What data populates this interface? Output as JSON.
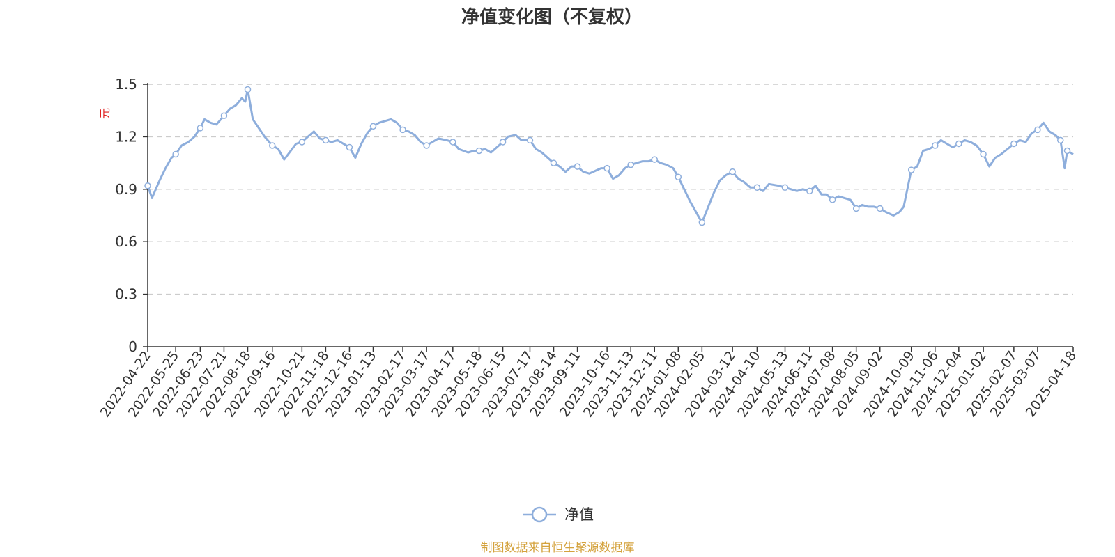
{
  "colors": {
    "series": "#8eaedc",
    "unit": "#e02020",
    "source": "#d4a23c",
    "grid": "#cccccc",
    "axis": "#333333"
  },
  "chart_data": {
    "type": "line",
    "title": "净值变化图（不复权）",
    "ylabel": "元",
    "ylim": [
      0,
      1.5
    ],
    "yticks": [
      "0",
      "0.3",
      "0.6",
      "0.9",
      "1.2",
      "1.5"
    ],
    "grid": true,
    "legend_position": "bottom-center",
    "x_tick_labels": [
      "2022-04-22",
      "2022-05-25",
      "2022-06-23",
      "2022-07-21",
      "2022-08-18",
      "2022-09-16",
      "2022-10-21",
      "2022-11-18",
      "2022-12-16",
      "2023-01-13",
      "2023-02-17",
      "2023-03-17",
      "2023-04-17",
      "2023-05-18",
      "2023-06-15",
      "2023-07-17",
      "2023-08-14",
      "2023-09-11",
      "2023-10-16",
      "2023-11-13",
      "2023-12-11",
      "2024-01-08",
      "2024-02-05",
      "2024-03-12",
      "2024-04-10",
      "2024-05-13",
      "2024-06-11",
      "2024-07-08",
      "2024-08-05",
      "2024-09-02",
      "2024-10-09",
      "2024-11-06",
      "2024-12-04",
      "2025-01-02",
      "2025-02-07",
      "2025-03-07",
      "2025-04-18"
    ],
    "series": [
      {
        "name": "净值",
        "x": [
          "2022-04-22",
          "2022-04-27",
          "2022-05-06",
          "2022-05-13",
          "2022-05-20",
          "2022-05-25",
          "2022-06-01",
          "2022-06-09",
          "2022-06-16",
          "2022-06-23",
          "2022-06-28",
          "2022-07-05",
          "2022-07-12",
          "2022-07-21",
          "2022-07-28",
          "2022-08-04",
          "2022-08-11",
          "2022-08-15",
          "2022-08-18",
          "2022-08-24",
          "2022-08-31",
          "2022-09-07",
          "2022-09-16",
          "2022-09-23",
          "2022-09-30",
          "2022-10-14",
          "2022-10-21",
          "2022-10-28",
          "2022-11-04",
          "2022-11-11",
          "2022-11-18",
          "2022-11-25",
          "2022-12-02",
          "2022-12-09",
          "2022-12-16",
          "2022-12-23",
          "2022-12-30",
          "2023-01-06",
          "2023-01-13",
          "2023-01-20",
          "2023-02-03",
          "2023-02-10",
          "2023-02-17",
          "2023-02-24",
          "2023-03-03",
          "2023-03-10",
          "2023-03-17",
          "2023-03-24",
          "2023-03-31",
          "2023-04-10",
          "2023-04-17",
          "2023-04-24",
          "2023-05-05",
          "2023-05-12",
          "2023-05-18",
          "2023-05-25",
          "2023-06-01",
          "2023-06-08",
          "2023-06-15",
          "2023-06-21",
          "2023-06-30",
          "2023-07-07",
          "2023-07-17",
          "2023-07-24",
          "2023-07-31",
          "2023-08-07",
          "2023-08-14",
          "2023-08-21",
          "2023-08-28",
          "2023-09-04",
          "2023-09-11",
          "2023-09-18",
          "2023-09-25",
          "2023-10-09",
          "2023-10-16",
          "2023-10-23",
          "2023-10-30",
          "2023-11-06",
          "2023-11-13",
          "2023-11-20",
          "2023-11-27",
          "2023-12-04",
          "2023-12-11",
          "2023-12-18",
          "2023-12-25",
          "2024-01-02",
          "2024-01-08",
          "2024-01-15",
          "2024-01-22",
          "2024-01-29",
          "2024-02-05",
          "2024-02-19",
          "2024-02-26",
          "2024-03-04",
          "2024-03-12",
          "2024-03-19",
          "2024-03-26",
          "2024-04-02",
          "2024-04-10",
          "2024-04-17",
          "2024-04-24",
          "2024-05-06",
          "2024-05-13",
          "2024-05-20",
          "2024-05-27",
          "2024-06-03",
          "2024-06-11",
          "2024-06-18",
          "2024-06-25",
          "2024-07-01",
          "2024-07-08",
          "2024-07-15",
          "2024-07-22",
          "2024-07-29",
          "2024-08-05",
          "2024-08-12",
          "2024-08-19",
          "2024-08-26",
          "2024-09-02",
          "2024-09-09",
          "2024-09-18",
          "2024-09-25",
          "2024-09-30",
          "2024-10-09",
          "2024-10-16",
          "2024-10-23",
          "2024-10-30",
          "2024-11-06",
          "2024-11-13",
          "2024-11-20",
          "2024-11-27",
          "2024-12-04",
          "2024-12-11",
          "2024-12-18",
          "2024-12-25",
          "2025-01-02",
          "2025-01-09",
          "2025-01-16",
          "2025-01-23",
          "2025-02-07",
          "2025-02-14",
          "2025-02-21",
          "2025-02-28",
          "2025-03-07",
          "2025-03-14",
          "2025-03-21",
          "2025-03-28",
          "2025-04-03",
          "2025-04-08",
          "2025-04-11",
          "2025-04-18"
        ],
        "values": [
          0.92,
          0.85,
          0.95,
          1.02,
          1.08,
          1.1,
          1.15,
          1.17,
          1.2,
          1.25,
          1.3,
          1.28,
          1.27,
          1.32,
          1.36,
          1.38,
          1.42,
          1.4,
          1.47,
          1.3,
          1.25,
          1.2,
          1.15,
          1.13,
          1.07,
          1.16,
          1.17,
          1.2,
          1.23,
          1.19,
          1.18,
          1.17,
          1.18,
          1.16,
          1.14,
          1.08,
          1.16,
          1.22,
          1.26,
          1.28,
          1.3,
          1.28,
          1.24,
          1.23,
          1.21,
          1.17,
          1.15,
          1.17,
          1.19,
          1.18,
          1.17,
          1.13,
          1.11,
          1.12,
          1.12,
          1.13,
          1.11,
          1.14,
          1.17,
          1.2,
          1.21,
          1.18,
          1.18,
          1.13,
          1.11,
          1.08,
          1.05,
          1.03,
          1.0,
          1.03,
          1.03,
          1.0,
          0.99,
          1.02,
          1.02,
          0.96,
          0.98,
          1.02,
          1.04,
          1.05,
          1.06,
          1.06,
          1.07,
          1.05,
          1.04,
          1.02,
          0.97,
          0.9,
          0.83,
          0.77,
          0.71,
          0.88,
          0.95,
          0.98,
          1.0,
          0.96,
          0.94,
          0.91,
          0.91,
          0.89,
          0.93,
          0.92,
          0.91,
          0.9,
          0.89,
          0.9,
          0.89,
          0.92,
          0.87,
          0.87,
          0.84,
          0.86,
          0.85,
          0.84,
          0.79,
          0.81,
          0.8,
          0.8,
          0.79,
          0.77,
          0.75,
          0.77,
          0.8,
          1.01,
          1.03,
          1.12,
          1.13,
          1.15,
          1.18,
          1.16,
          1.14,
          1.16,
          1.18,
          1.17,
          1.15,
          1.1,
          1.03,
          1.08,
          1.1,
          1.16,
          1.18,
          1.17,
          1.22,
          1.24,
          1.28,
          1.23,
          1.21,
          1.18,
          1.02,
          1.12,
          1.1
        ]
      }
    ]
  },
  "source_text": "制图数据来自恒生聚源数据库"
}
